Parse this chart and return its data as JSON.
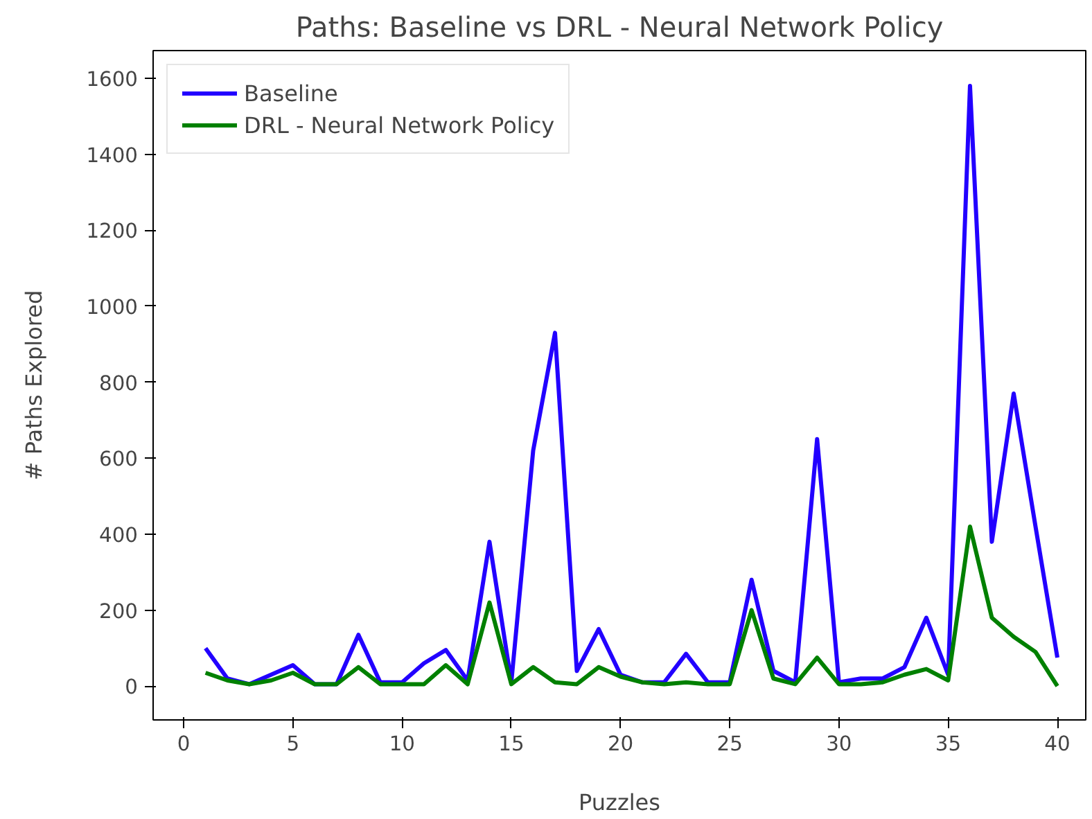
{
  "chart_data": {
    "type": "line",
    "title": "Paths: Baseline vs DRL - Neural Network Policy",
    "xlabel": "Puzzles",
    "ylabel": "# Paths Explored",
    "x": [
      1,
      2,
      3,
      4,
      5,
      6,
      7,
      8,
      9,
      10,
      11,
      12,
      13,
      14,
      15,
      16,
      17,
      18,
      19,
      20,
      21,
      22,
      23,
      24,
      25,
      26,
      27,
      28,
      29,
      30,
      31,
      32,
      33,
      34,
      35,
      36,
      37,
      38,
      39,
      40
    ],
    "series": [
      {
        "name": "Baseline",
        "color": "#2200ff",
        "values": [
          100,
          20,
          5,
          30,
          55,
          5,
          5,
          135,
          10,
          10,
          60,
          95,
          15,
          380,
          10,
          620,
          930,
          40,
          150,
          30,
          10,
          10,
          85,
          10,
          10,
          280,
          40,
          10,
          650,
          10,
          20,
          20,
          50,
          180,
          30,
          1580,
          380,
          770,
          420,
          75
        ]
      },
      {
        "name": "DRL - Neural Network Policy",
        "color": "#008000",
        "values": [
          35,
          15,
          5,
          15,
          35,
          5,
          5,
          50,
          5,
          5,
          5,
          55,
          5,
          220,
          5,
          50,
          10,
          5,
          50,
          25,
          10,
          5,
          10,
          5,
          5,
          200,
          20,
          5,
          75,
          5,
          5,
          10,
          30,
          45,
          15,
          420,
          180,
          130,
          90,
          0
        ]
      }
    ],
    "xlim": [
      -1.4,
      41.3
    ],
    "ylim": [
      -89,
      1673
    ],
    "xticks": [
      0,
      5,
      10,
      15,
      20,
      25,
      30,
      35,
      40
    ],
    "yticks": [
      0,
      200,
      400,
      600,
      800,
      1000,
      1200,
      1400,
      1600
    ],
    "grid": false,
    "legend": "top left",
    "line_style": "solid"
  }
}
